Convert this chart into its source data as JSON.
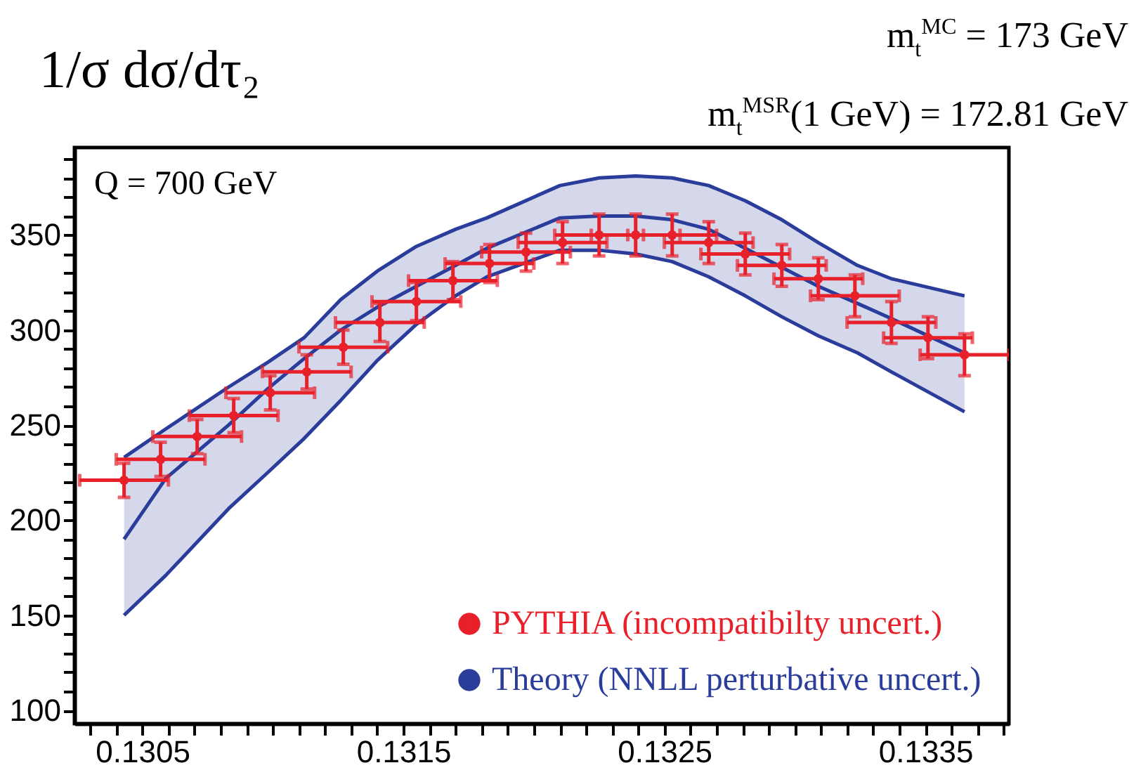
{
  "chart_data": {
    "type": "scatter",
    "ylabel": "1/σ dσ/dτ₂",
    "annotations": [
      "m$_{t}$$^{MC}$ = 173  GeV",
      "m$_{t}$$^{MSR}$(1 GeV) = 172.81 GeV",
      "Q = 700 GeV"
    ],
    "xlim": [
      0.13024,
      0.13382
    ],
    "ylim": [
      93,
      396
    ],
    "xticks": [
      {
        "value": 0.1303,
        "label": null
      },
      {
        "value": 0.1304,
        "label": null
      },
      0.1305,
      {
        "value": 0.1306,
        "label": null
      },
      {
        "value": 0.1307,
        "label": null
      },
      {
        "value": 0.1308,
        "label": null
      },
      {
        "value": 0.1309,
        "label": null
      },
      {
        "value": 0.131,
        "label": null
      },
      {
        "value": 0.1311,
        "label": null
      },
      {
        "value": 0.1312,
        "label": null
      },
      {
        "value": 0.1313,
        "label": null
      },
      {
        "value": 0.1314,
        "label": null
      },
      0.1315,
      {
        "value": 0.1316,
        "label": null
      },
      {
        "value": 0.1317,
        "label": null
      },
      {
        "value": 0.1318,
        "label": null
      },
      {
        "value": 0.1319,
        "label": null
      },
      {
        "value": 0.132,
        "label": null
      },
      {
        "value": 0.1321,
        "label": null
      },
      {
        "value": 0.1322,
        "label": null
      },
      {
        "value": 0.1323,
        "label": null
      },
      {
        "value": 0.1324,
        "label": null
      },
      0.1325,
      {
        "value": 0.1326,
        "label": null
      },
      {
        "value": 0.1327,
        "label": null
      },
      {
        "value": 0.1328,
        "label": null
      },
      {
        "value": 0.1329,
        "label": null
      },
      {
        "value": 0.133,
        "label": null
      },
      {
        "value": 0.1331,
        "label": null
      },
      {
        "value": 0.1332,
        "label": null
      },
      {
        "value": 0.1333,
        "label": null
      },
      {
        "value": 0.1334,
        "label": null
      },
      0.1335,
      {
        "value": 0.1336,
        "label": null
      },
      {
        "value": 0.1337,
        "label": null
      },
      {
        "value": 0.1338,
        "label": null
      }
    ],
    "yticks": [
      100,
      {
        "value": 110,
        "label": null
      },
      {
        "value": 120,
        "label": null
      },
      {
        "value": 130,
        "label": null
      },
      {
        "value": 140,
        "label": null
      },
      150,
      {
        "value": 160,
        "label": null
      },
      {
        "value": 170,
        "label": null
      },
      {
        "value": 180,
        "label": null
      },
      {
        "value": 190,
        "label": null
      },
      200,
      {
        "value": 210,
        "label": null
      },
      {
        "value": 220,
        "label": null
      },
      {
        "value": 230,
        "label": null
      },
      {
        "value": 240,
        "label": null
      },
      250,
      {
        "value": 260,
        "label": null
      },
      {
        "value": 270,
        "label": null
      },
      {
        "value": 280,
        "label": null
      },
      {
        "value": 290,
        "label": null
      },
      300,
      {
        "value": 310,
        "label": null
      },
      {
        "value": 320,
        "label": null
      },
      {
        "value": 330,
        "label": null
      },
      {
        "value": 340,
        "label": null
      },
      350,
      {
        "value": 360,
        "label": null
      },
      {
        "value": 370,
        "label": null
      },
      {
        "value": 380,
        "label": null
      },
      {
        "value": 390,
        "label": null
      }
    ],
    "grid": false,
    "legend": "bottom right",
    "series": [
      {
        "name": "PYTHIA (incompatibilty uncert.)",
        "type": "scatter",
        "color": "#e8202a",
        "marker": "circle",
        "x": [
          0.13043,
          0.13057,
          0.13071,
          0.13085,
          0.13099,
          0.13113,
          0.13127,
          0.13141,
          0.13155,
          0.13169,
          0.13183,
          0.13197,
          0.13211,
          0.13225,
          0.13239,
          0.13253,
          0.13267,
          0.13281,
          0.13295,
          0.13309,
          0.13323,
          0.13337,
          0.13351,
          0.13365
        ],
        "values": [
          221,
          232,
          244,
          255,
          267,
          278,
          291,
          304,
          315,
          326,
          335,
          341,
          346,
          350,
          350,
          350,
          346,
          340,
          334,
          327,
          318,
          304,
          296,
          287
        ],
        "errors": [
          9,
          9,
          9,
          9,
          9,
          9,
          9,
          10,
          10,
          10,
          10,
          10,
          11,
          11,
          11,
          11,
          11,
          11,
          11,
          11,
          11,
          11,
          11,
          11
        ],
        "xerrors": [
          0.00017,
          0.00017,
          0.00017,
          0.00017,
          0.00017,
          0.00017,
          0.00017,
          0.00017,
          0.00017,
          0.00017,
          0.00017,
          0.00017,
          0.00017,
          0.00017,
          0.00017,
          0.00017,
          0.00017,
          0.00017,
          0.00017,
          0.00017,
          0.00017,
          0.00017,
          0.00017,
          0.00017
        ]
      },
      {
        "name": "Theory (NNLL perturbative uncert.)",
        "type": "line",
        "color": "#2b3d9b",
        "x": [
          0.13043,
          0.13059,
          0.13083,
          0.13098,
          0.13112,
          0.13126,
          0.1314,
          0.13155,
          0.1317,
          0.13182,
          0.1321,
          0.13225,
          0.13239,
          0.13253,
          0.13267,
          0.13281,
          0.13295,
          0.13309,
          0.13324,
          0.13337,
          0.13365
        ],
        "values": [
          190,
          222,
          250,
          269,
          285,
          300,
          312,
          323,
          334,
          343,
          359,
          360,
          360,
          358,
          353,
          343,
          333,
          323,
          314,
          306,
          288
        ],
        "lower": [
          150,
          171,
          206,
          225,
          243,
          263,
          284,
          303,
          318,
          328,
          342,
          342,
          340,
          336,
          328,
          318,
          307,
          297,
          288,
          278,
          257
        ],
        "upper": [
          233,
          248,
          270,
          283,
          296,
          316,
          331,
          344,
          353,
          359,
          376,
          380,
          381,
          380,
          376,
          368,
          358,
          346,
          334,
          327,
          318
        ]
      },
      {
        "type": "line",
        "color": "#2b3d9b",
        "x": [
          0.13043,
          0.13059,
          0.13083,
          0.13098,
          0.13112,
          0.13126,
          0.1314,
          0.13155,
          0.1317,
          0.13182,
          0.1321,
          0.13225,
          0.13239,
          0.13253,
          0.13267,
          0.13281,
          0.13295,
          0.13309,
          0.13324,
          0.13337,
          0.13365
        ],
        "values": [
          150,
          171,
          206,
          225,
          243,
          263,
          284,
          303,
          318,
          328,
          342,
          342,
          340,
          336,
          328,
          318,
          307,
          297,
          288,
          278,
          257
        ]
      },
      {
        "type": "line",
        "color": "#2b3d9b",
        "x": [
          0.13043,
          0.13059,
          0.13083,
          0.13098,
          0.13112,
          0.13126,
          0.1314,
          0.13155,
          0.1317,
          0.13182,
          0.1321,
          0.13225,
          0.13239,
          0.13253,
          0.13267,
          0.13281,
          0.13295,
          0.13309,
          0.13324,
          0.13337,
          0.13365
        ],
        "values": [
          233,
          248,
          270,
          283,
          296,
          316,
          331,
          344,
          353,
          359,
          376,
          380,
          381,
          380,
          376,
          368,
          358,
          346,
          334,
          327,
          318
        ]
      }
    ]
  }
}
